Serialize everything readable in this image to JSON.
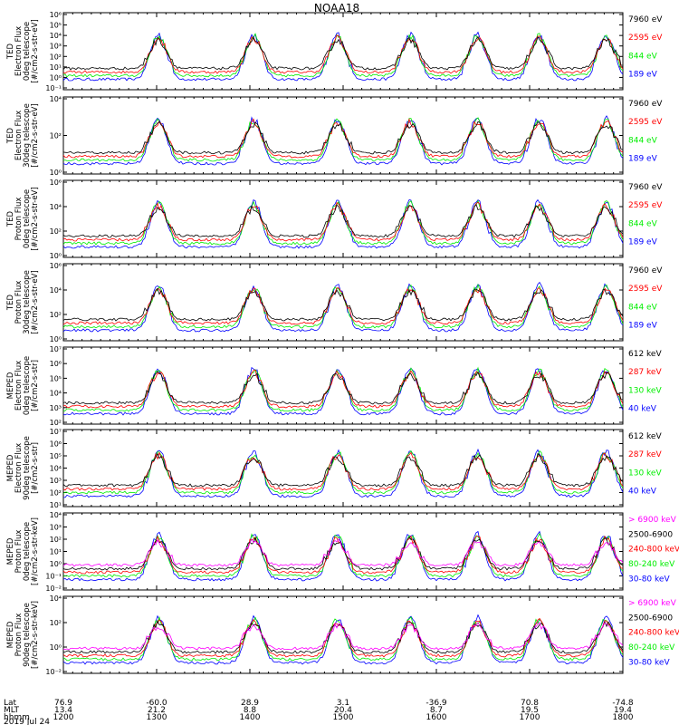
{
  "chart_data": {
    "type": "line",
    "title": "NOAA18",
    "x_axis": {
      "rows": [
        {
          "label": "Lat",
          "values": [
            "76.9",
            "-60.0",
            "28.9",
            "3.1",
            "-36.9",
            "70.8",
            "-74.8"
          ]
        },
        {
          "label": "MLT",
          "values": [
            "13.4",
            "21.2",
            "8.8",
            "20.4",
            "8.7",
            "19.5",
            "19.4"
          ]
        },
        {
          "label": "hhmm",
          "values": [
            "1200",
            "1300",
            "1400",
            "1500",
            "1600",
            "1700",
            "1800"
          ]
        }
      ],
      "date": "2019 Jul 24",
      "range_hours": [
        12,
        18
      ]
    },
    "panels": [
      {
        "ylabel": [
          "TED",
          "Electron Flux",
          "0deg telescope",
          "[#/cm2-s-str-eV]"
        ],
        "yticks": [
          "10⁻¹",
          "10⁰",
          "10¹",
          "10²",
          "10³",
          "10⁴",
          "10⁵",
          "10⁶"
        ],
        "ylim_exp": [
          -1,
          6
        ],
        "scale": "log",
        "legend": [
          {
            "label": "7960 eV",
            "color": "#000000"
          },
          {
            "label": "2595 eV",
            "color": "#ff0000"
          },
          {
            "label": "844 eV",
            "color": "#00ee00"
          },
          {
            "label": "189 eV",
            "color": "#0000ff"
          }
        ]
      },
      {
        "ylabel": [
          "TED",
          "Electron Flux",
          "30deg telescope",
          "[#/cm2-s-str-eV]"
        ],
        "yticks": [
          "10⁰",
          "10²",
          "10⁴"
        ],
        "ylim_exp": [
          -1,
          5
        ],
        "scale": "log",
        "legend": [
          {
            "label": "7960 eV",
            "color": "#000000"
          },
          {
            "label": "2595 eV",
            "color": "#ff0000"
          },
          {
            "label": "844 eV",
            "color": "#00ee00"
          },
          {
            "label": "189 eV",
            "color": "#0000ff"
          }
        ]
      },
      {
        "ylabel": [
          "TED",
          "Proton Flux",
          "0deg telescope",
          "[#/cm2-s-str-eV]"
        ],
        "yticks": [
          "10⁰",
          "10²",
          "10⁴",
          "10⁶"
        ],
        "ylim_exp": [
          -1,
          6
        ],
        "scale": "log",
        "legend": [
          {
            "label": "7960 eV",
            "color": "#000000"
          },
          {
            "label": "2595 eV",
            "color": "#ff0000"
          },
          {
            "label": "844 eV",
            "color": "#00ee00"
          },
          {
            "label": "189 eV",
            "color": "#0000ff"
          }
        ]
      },
      {
        "ylabel": [
          "TED",
          "Proton Flux",
          "30deg telescope",
          "[#/cm2-s-str-eV]"
        ],
        "yticks": [
          "10⁰",
          "10²",
          "10⁴",
          "10⁶"
        ],
        "ylim_exp": [
          -1,
          6
        ],
        "scale": "log",
        "legend": [
          {
            "label": "7960 eV",
            "color": "#000000"
          },
          {
            "label": "2595 eV",
            "color": "#ff0000"
          },
          {
            "label": "844 eV",
            "color": "#00ee00"
          },
          {
            "label": "189 eV",
            "color": "#0000ff"
          }
        ]
      },
      {
        "ylabel": [
          "MEPED",
          "Electron Flux",
          "0deg telescope",
          "[#/cm2-s-str]"
        ],
        "yticks": [
          "10²",
          "10³",
          "10⁴",
          "10⁵",
          "10⁶",
          "10⁷"
        ],
        "ylim_exp": [
          2,
          7
        ],
        "scale": "log",
        "legend": [
          {
            "label": "612 keV",
            "color": "#000000"
          },
          {
            "label": "287 keV",
            "color": "#ff0000"
          },
          {
            "label": "130 keV",
            "color": "#00ee00"
          },
          {
            "label": "40 keV",
            "color": "#0000ff"
          }
        ]
      },
      {
        "ylabel": [
          "MEPED",
          "Electron Flux",
          "90deg telescope",
          "[#/cm2-s-str]"
        ],
        "yticks": [
          "10¹",
          "10²",
          "10³",
          "10⁴",
          "10⁵",
          "10⁶",
          "10⁷"
        ],
        "ylim_exp": [
          1,
          7
        ],
        "scale": "log",
        "legend": [
          {
            "label": "612 keV",
            "color": "#000000"
          },
          {
            "label": "287 keV",
            "color": "#ff0000"
          },
          {
            "label": "130 keV",
            "color": "#00ee00"
          },
          {
            "label": "40 keV",
            "color": "#0000ff"
          }
        ]
      },
      {
        "ylabel": [
          "MEPED",
          "Proton Flux",
          "0deg telescope",
          "[#/cm2-s-str-keV]"
        ],
        "yticks": [
          "10⁻²",
          "10⁻¹",
          "10⁰",
          "10¹",
          "10²",
          "10³",
          "10⁴"
        ],
        "ylim_exp": [
          -2,
          4
        ],
        "scale": "log",
        "legend": [
          {
            "label": "> 6900 keV",
            "color": "#ff00ff"
          },
          {
            "label": "2500-6900",
            "color": "#000000"
          },
          {
            "label": "240-800 keV",
            "color": "#ff0000"
          },
          {
            "label": "80-240 keV",
            "color": "#00ee00"
          },
          {
            "label": "30-80 keV",
            "color": "#0000ff"
          }
        ]
      },
      {
        "ylabel": [
          "MEPED",
          "Proton Flux",
          "90deg telescope",
          "[#/cm2-s-str-keV]"
        ],
        "yticks": [
          "10⁻²",
          "10⁰",
          "10²",
          "10⁴"
        ],
        "ylim_exp": [
          -2,
          5
        ],
        "scale": "log",
        "legend": [
          {
            "label": "> 6900 keV",
            "color": "#ff00ff"
          },
          {
            "label": "2500-6900",
            "color": "#000000"
          },
          {
            "label": "240-800 keV",
            "color": "#ff0000"
          },
          {
            "label": "80-240 keV",
            "color": "#00ee00"
          },
          {
            "label": "30-80 keV",
            "color": "#0000ff"
          }
        ]
      }
    ]
  }
}
